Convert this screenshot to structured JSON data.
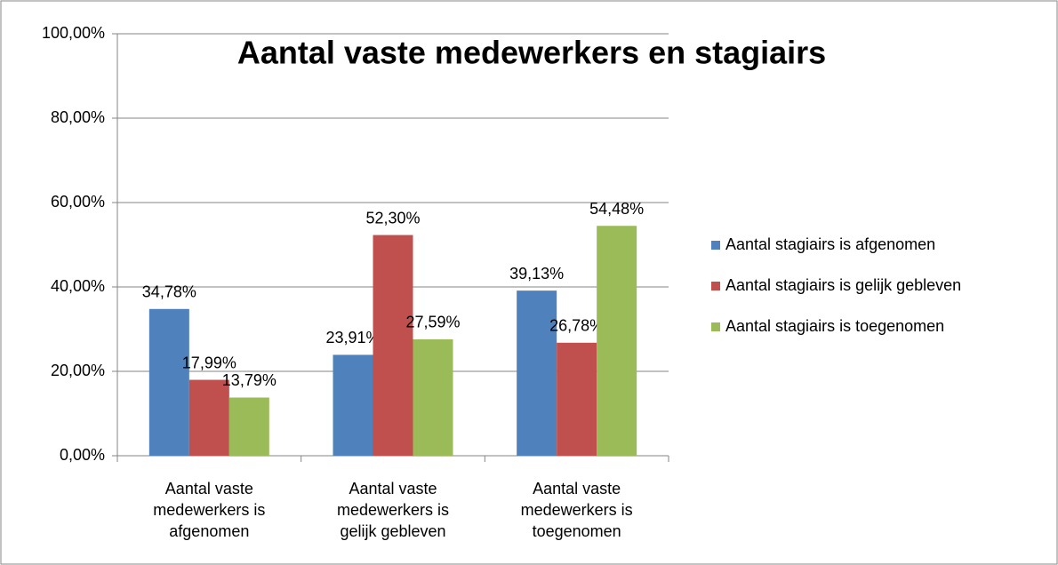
{
  "chart_data": {
    "type": "bar",
    "title": "Aantal vaste medewerkers en stagiairs",
    "categories": [
      "Aantal vaste medewerkers is afgenomen",
      "Aantal vaste medewerkers is gelijk gebleven",
      "Aantal vaste medewerkers is toegenomen"
    ],
    "series": [
      {
        "name": "Aantal stagiairs is afgenomen",
        "color": "#4f81bd",
        "values": [
          34.78,
          23.91,
          39.13
        ],
        "value_labels": [
          "34,78%",
          "23,91%",
          "39,13%"
        ]
      },
      {
        "name": "Aantal stagiairs is gelijk gebleven",
        "color": "#c0504d",
        "values": [
          17.99,
          52.3,
          26.78
        ],
        "value_labels": [
          "17,99%",
          "52,30%",
          "26,78%"
        ]
      },
      {
        "name": "Aantal stagiairs is toegenomen",
        "color": "#9bbb59",
        "values": [
          13.79,
          27.59,
          54.48
        ],
        "value_labels": [
          "13,79%",
          "27,59%",
          "54,48%"
        ]
      }
    ],
    "ylim": [
      0,
      100
    ],
    "yticks": [
      {
        "value": 0,
        "label": "0,00%"
      },
      {
        "value": 20,
        "label": "20,00%"
      },
      {
        "value": 40,
        "label": "40,00%"
      },
      {
        "value": 60,
        "label": "60,00%"
      },
      {
        "value": 80,
        "label": "80,00%"
      },
      {
        "value": 100,
        "label": "100,00%"
      }
    ],
    "grid": true,
    "legend": "right"
  }
}
